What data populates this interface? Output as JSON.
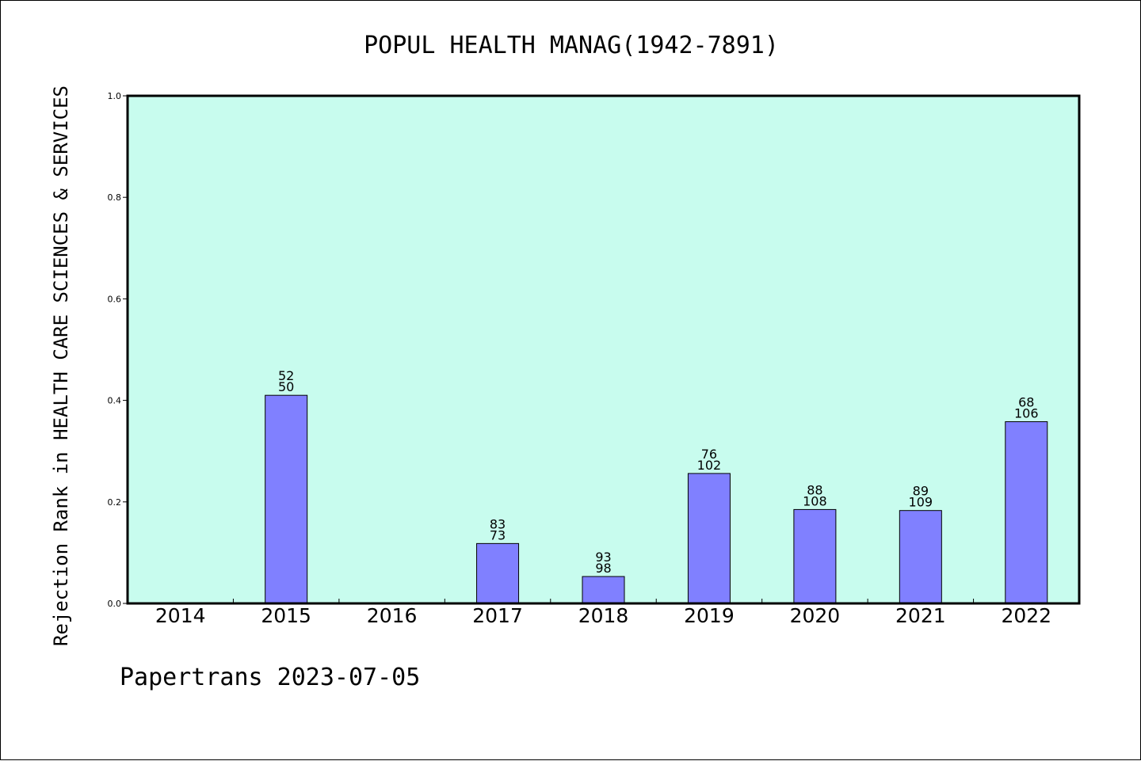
{
  "chart_data": {
    "type": "bar",
    "title": "POPUL HEALTH MANAG(1942-7891)",
    "ylabel": "Rejection Rank in HEALTH CARE SCIENCES & SERVICES",
    "xlabel": "",
    "footer": "Papertrans 2023-07-05",
    "categories": [
      "2014",
      "2015",
      "2016",
      "2017",
      "2018",
      "2019",
      "2020",
      "2021",
      "2022"
    ],
    "values": [
      null,
      0.41,
      null,
      0.118,
      0.053,
      0.256,
      0.185,
      0.183,
      0.358
    ],
    "labels_top": [
      "",
      "52",
      "",
      "83",
      "93",
      "76",
      "88",
      "89",
      "68"
    ],
    "labels_bottom": [
      "",
      "50",
      "",
      "73",
      "98",
      "102",
      "108",
      "109",
      "106"
    ],
    "ylim": [
      0,
      1.0
    ],
    "yticks": [
      "0.0",
      "0.2",
      "0.4",
      "0.6",
      "0.8",
      "1.0"
    ],
    "grid": false,
    "colors": {
      "plot_background": "#c8fcee",
      "bar_fill": "#8080ff",
      "bar_stroke": "#000000",
      "axis": "#000000"
    }
  }
}
